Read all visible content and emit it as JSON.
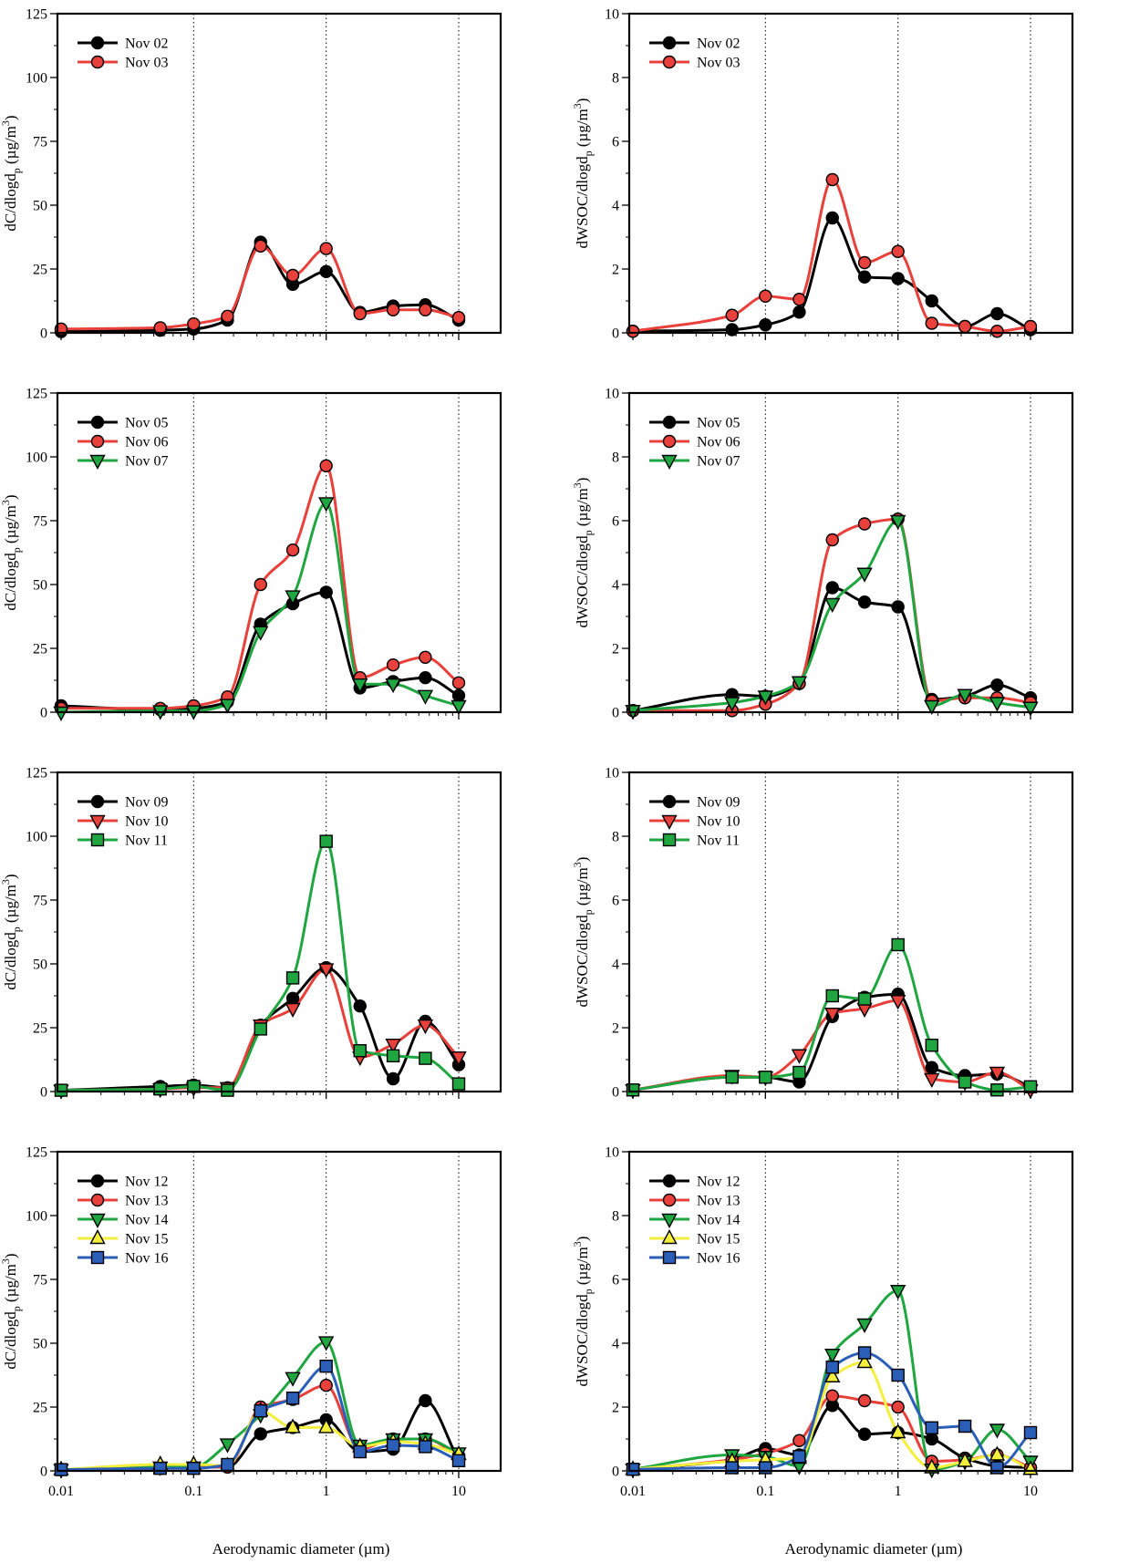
{
  "figure": {
    "xlabel": "Aerodynamic diameter (µm)",
    "x_ticks": [
      "0.01",
      "0.1",
      "1",
      "10"
    ]
  },
  "colors": {
    "black": "#000000",
    "red": "#e8403a",
    "green": "#20a640",
    "yellow": "#f4ee3c",
    "blue": "#2b5eb6"
  },
  "chart_data": [
    {
      "id": "left-1",
      "type": "line",
      "xscale": "log",
      "xlim": [
        0.01,
        10
      ],
      "ylim": [
        0,
        125
      ],
      "ylabel": {
        "main": "dC/dlogd",
        "sub": "p",
        "unit_pre": " (µg/m",
        "sup": "3",
        "unit_post": ")"
      },
      "yticks": [
        0,
        25,
        50,
        75,
        100,
        125
      ],
      "x": [
        0.01,
        0.056,
        0.1,
        0.18,
        0.32,
        0.56,
        1,
        1.8,
        3.2,
        5.6,
        10
      ],
      "series": [
        {
          "name": "Nov 02",
          "color": "#000000",
          "marker": "circle",
          "values": [
            0.5,
            1,
            1.5,
            5,
            35.5,
            19,
            24,
            8,
            10.5,
            11,
            5
          ]
        },
        {
          "name": "Nov 03",
          "color": "#e8403a",
          "marker": "circle",
          "values": [
            1.5,
            2,
            3.5,
            6.5,
            34,
            22.5,
            33,
            7.5,
            9,
            9,
            6
          ]
        }
      ]
    },
    {
      "id": "right-1",
      "type": "line",
      "xscale": "log",
      "xlim": [
        0.01,
        10
      ],
      "ylim": [
        0,
        10
      ],
      "ylabel": {
        "main": "dWSOC/dlogd",
        "sub": "p",
        "unit_pre": " (µg/m",
        "sup": "3",
        "unit_post": ")"
      },
      "yticks": [
        0,
        2,
        4,
        6,
        8,
        10
      ],
      "x": [
        0.01,
        0.056,
        0.1,
        0.18,
        0.32,
        0.56,
        1,
        1.8,
        3.2,
        5.6,
        10
      ],
      "series": [
        {
          "name": "Nov 02",
          "color": "#000000",
          "marker": "circle",
          "values": [
            0.05,
            0.1,
            0.25,
            0.65,
            3.6,
            1.75,
            1.7,
            1.0,
            0.2,
            0.6,
            0.1
          ]
        },
        {
          "name": "Nov 03",
          "color": "#e8403a",
          "marker": "circle",
          "values": [
            0.05,
            0.55,
            1.15,
            1.05,
            4.8,
            2.2,
            2.55,
            0.3,
            0.2,
            0.05,
            0.2
          ]
        }
      ]
    },
    {
      "id": "left-2",
      "type": "line",
      "xscale": "log",
      "xlim": [
        0.01,
        10
      ],
      "ylim": [
        0,
        125
      ],
      "ylabel": {
        "main": "dC/dlogd",
        "sub": "p",
        "unit_pre": " (µg/m",
        "sup": "3",
        "unit_post": ")"
      },
      "yticks": [
        0,
        25,
        50,
        75,
        100,
        125
      ],
      "x": [
        0.01,
        0.056,
        0.1,
        0.18,
        0.32,
        0.56,
        1,
        1.8,
        3.2,
        5.6,
        10
      ],
      "series": [
        {
          "name": "Nov 05",
          "color": "#000000",
          "marker": "circle",
          "values": [
            2.5,
            1,
            1.5,
            4,
            34.5,
            42.5,
            47,
            9.5,
            12,
            13.5,
            6.5
          ]
        },
        {
          "name": "Nov 06",
          "color": "#e8403a",
          "marker": "circle",
          "values": [
            1.5,
            1.5,
            2.5,
            6,
            50,
            63.5,
            96.5,
            13.5,
            18.5,
            21.5,
            11.5
          ]
        },
        {
          "name": "Nov 07",
          "color": "#20a640",
          "marker": "triangle-down",
          "values": [
            0,
            0.5,
            0.5,
            3,
            31.5,
            45.5,
            82,
            11,
            11,
            6.5,
            2.5
          ]
        }
      ]
    },
    {
      "id": "right-2",
      "type": "line",
      "xscale": "log",
      "xlim": [
        0.01,
        10
      ],
      "ylim": [
        0,
        10
      ],
      "ylabel": {
        "main": "dWSOC/dlogd",
        "sub": "p",
        "unit_pre": " (µg/m",
        "sup": "3",
        "unit_post": ")"
      },
      "yticks": [
        0,
        2,
        4,
        6,
        8,
        10
      ],
      "x": [
        0.01,
        0.056,
        0.1,
        0.18,
        0.32,
        0.56,
        1,
        1.8,
        3.2,
        5.6,
        10
      ],
      "series": [
        {
          "name": "Nov 05",
          "color": "#000000",
          "marker": "circle",
          "values": [
            0.05,
            0.55,
            0.5,
            0.9,
            3.9,
            3.45,
            3.3,
            0.4,
            0.5,
            0.85,
            0.45
          ]
        },
        {
          "name": "Nov 06",
          "color": "#e8403a",
          "marker": "circle",
          "values": [
            0.05,
            0.05,
            0.25,
            0.9,
            5.4,
            5.9,
            6.05,
            0.35,
            0.45,
            0.45,
            0.3
          ]
        },
        {
          "name": "Nov 07",
          "color": "#20a640",
          "marker": "triangle-down",
          "values": [
            0.05,
            0.3,
            0.5,
            0.95,
            3.4,
            4.35,
            6.0,
            0.2,
            0.55,
            0.3,
            0.15
          ]
        }
      ]
    },
    {
      "id": "left-3",
      "type": "line",
      "xscale": "log",
      "xlim": [
        0.01,
        10
      ],
      "ylim": [
        0,
        125
      ],
      "ylabel": {
        "main": "dC/dlogd",
        "sub": "p",
        "unit_pre": " (µg/m",
        "sup": "3",
        "unit_post": ")"
      },
      "yticks": [
        0,
        25,
        50,
        75,
        100,
        125
      ],
      "x": [
        0.01,
        0.056,
        0.1,
        0.18,
        0.32,
        0.56,
        1,
        1.8,
        3.2,
        5.6,
        10
      ],
      "series": [
        {
          "name": "Nov 09",
          "color": "#000000",
          "marker": "circle",
          "values": [
            0.5,
            2,
            2.5,
            1.5,
            26,
            36.5,
            48.5,
            33.5,
            5,
            27.5,
            10.5
          ]
        },
        {
          "name": "Nov 10",
          "color": "#e8403a",
          "marker": "triangle-down",
          "values": [
            0.5,
            1,
            1.5,
            1.5,
            26,
            32.5,
            48,
            13.5,
            18.5,
            26,
            13.5
          ]
        },
        {
          "name": "Nov 11",
          "color": "#20a640",
          "marker": "square",
          "values": [
            0.5,
            1,
            2,
            0.5,
            24.5,
            44.5,
            98,
            16,
            14,
            13,
            3
          ]
        }
      ]
    },
    {
      "id": "right-3",
      "type": "line",
      "xscale": "log",
      "xlim": [
        0.01,
        10
      ],
      "ylim": [
        0,
        10
      ],
      "ylabel": {
        "main": "dWSOC/dlogd",
        "sub": "p",
        "unit_pre": " (µg/m",
        "sup": "3",
        "unit_post": ")"
      },
      "yticks": [
        0,
        2,
        4,
        6,
        8,
        10
      ],
      "x": [
        0.01,
        0.056,
        0.1,
        0.18,
        0.32,
        0.56,
        1,
        1.8,
        3.2,
        5.6,
        10
      ],
      "series": [
        {
          "name": "Nov 09",
          "color": "#000000",
          "marker": "circle",
          "values": [
            0.05,
            0.45,
            0.45,
            0.3,
            2.35,
            2.95,
            3.05,
            0.75,
            0.5,
            0.55,
            0.15
          ]
        },
        {
          "name": "Nov 10",
          "color": "#e8403a",
          "marker": "triangle-down",
          "values": [
            0.05,
            0.5,
            0.45,
            1.15,
            2.45,
            2.6,
            2.85,
            0.4,
            0.3,
            0.6,
            0.05
          ]
        },
        {
          "name": "Nov 11",
          "color": "#20a640",
          "marker": "square",
          "values": [
            0.05,
            0.45,
            0.45,
            0.6,
            3.0,
            2.9,
            4.6,
            1.45,
            0.3,
            0.05,
            0.15
          ]
        }
      ]
    },
    {
      "id": "left-4",
      "type": "line",
      "xscale": "log",
      "xlim": [
        0.01,
        10
      ],
      "ylim": [
        0,
        125
      ],
      "ylabel": {
        "main": "dC/dlogd",
        "sub": "p",
        "unit_pre": " (µg/m",
        "sup": "3",
        "unit_post": ")"
      },
      "yticks": [
        0,
        25,
        50,
        75,
        100,
        125
      ],
      "x": [
        0.01,
        0.056,
        0.1,
        0.18,
        0.32,
        0.56,
        1,
        1.8,
        3.2,
        5.6,
        10
      ],
      "series": [
        {
          "name": "Nov 12",
          "color": "#000000",
          "marker": "circle",
          "values": [
            0.5,
            1,
            1.5,
            1.5,
            14.5,
            17,
            20,
            7.5,
            8.5,
            27.5,
            4
          ]
        },
        {
          "name": "Nov 13",
          "color": "#e8403a",
          "marker": "circle",
          "values": [
            0.5,
            1,
            1.5,
            1.5,
            25,
            28,
            33.5,
            8.5,
            12.5,
            12.5,
            6
          ]
        },
        {
          "name": "Nov 14",
          "color": "#20a640",
          "marker": "triangle-down",
          "values": [
            0.5,
            1.5,
            1.5,
            10.5,
            22,
            36.5,
            50.5,
            10,
            12.5,
            12.5,
            7
          ]
        },
        {
          "name": "Nov 15",
          "color": "#f4ee3c",
          "marker": "triangle-up",
          "values": [
            0.5,
            2.5,
            2.5,
            2,
            23.5,
            17,
            17,
            9.5,
            11.5,
            10.5,
            6.5
          ]
        },
        {
          "name": "Nov 16",
          "color": "#2b5eb6",
          "marker": "square",
          "values": [
            0.5,
            1,
            1,
            2.5,
            23.5,
            28.5,
            41,
            7.5,
            10,
            9.5,
            4
          ]
        }
      ]
    },
    {
      "id": "right-4",
      "type": "line",
      "xscale": "log",
      "xlim": [
        0.01,
        10
      ],
      "ylim": [
        0,
        10
      ],
      "ylabel": {
        "main": "dWSOC/dlogd",
        "sub": "p",
        "unit_pre": " (µg/m",
        "sup": "3",
        "unit_post": ")"
      },
      "yticks": [
        0,
        2,
        4,
        6,
        8,
        10
      ],
      "x": [
        0.01,
        0.056,
        0.1,
        0.18,
        0.32,
        0.56,
        1,
        1.8,
        3.2,
        5.6,
        10
      ],
      "series": [
        {
          "name": "Nov 12",
          "color": "#000000",
          "marker": "circle",
          "values": [
            0.05,
            0.35,
            0.7,
            0.5,
            2.05,
            1.15,
            1.2,
            1.0,
            0.4,
            0.15,
            0.1
          ]
        },
        {
          "name": "Nov 13",
          "color": "#e8403a",
          "marker": "circle",
          "values": [
            0.05,
            0.35,
            0.55,
            0.95,
            2.35,
            2.2,
            2.0,
            0.3,
            0.35,
            0.5,
            0.1
          ]
        },
        {
          "name": "Nov 14",
          "color": "#20a640",
          "marker": "triangle-down",
          "values": [
            0.05,
            0.5,
            0.45,
            0.15,
            3.65,
            4.6,
            5.65,
            0.05,
            0.3,
            1.3,
            0.3
          ]
        },
        {
          "name": "Nov 15",
          "color": "#f4ee3c",
          "marker": "triangle-up",
          "values": [
            0.05,
            0.3,
            0.35,
            0.4,
            2.95,
            3.4,
            1.2,
            0.1,
            0.3,
            0.5,
            0.05
          ]
        },
        {
          "name": "Nov 16",
          "color": "#2b5eb6",
          "marker": "square",
          "values": [
            0.05,
            0.1,
            0.1,
            0.45,
            3.25,
            3.7,
            3.0,
            1.35,
            1.4,
            0.1,
            1.2
          ]
        }
      ]
    }
  ]
}
